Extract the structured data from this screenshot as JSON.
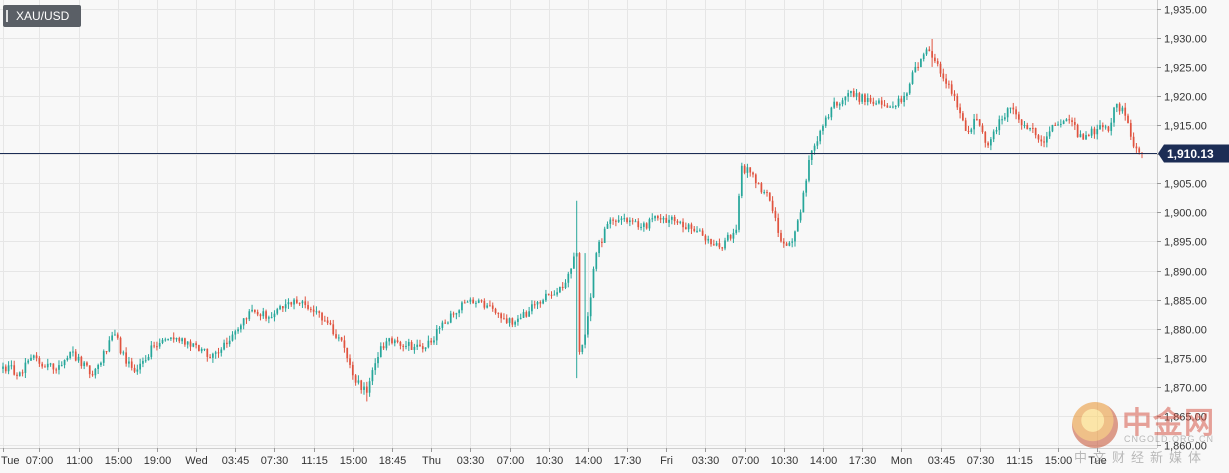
{
  "ticker": "XAU/USD",
  "colors": {
    "up": "#26a69a",
    "down": "#e0533f",
    "wick": "#444444",
    "price_line": "#1c2d55",
    "grid": "#e6e6e6"
  },
  "watermark": {
    "logo_text": "中金网",
    "url": "CNGOLD.ORG.CN",
    "subtitle": "中文财经新媒体"
  },
  "chart_data": {
    "type": "candlestick",
    "symbol": "XAU/USD",
    "ylim": [
      1859.5,
      1936.5
    ],
    "y_ticks": [
      "1,935.00",
      "1,930.00",
      "1,925.00",
      "1,920.00",
      "1,915.00",
      "1,910.00",
      "1,905.00",
      "1,900.00",
      "1,895.00",
      "1,890.00",
      "1,885.00",
      "1,880.00",
      "1,875.00",
      "1,870.00",
      "1,865.00",
      "1,860.00"
    ],
    "y_tick_values": [
      1935,
      1930,
      1925,
      1920,
      1915,
      1910,
      1905,
      1900,
      1895,
      1890,
      1885,
      1880,
      1875,
      1870,
      1865,
      1860
    ],
    "x_tick_labels": [
      "Tue",
      "07:00",
      "11:00",
      "15:00",
      "19:00",
      "Wed",
      "03:45",
      "07:30",
      "11:15",
      "15:00",
      "18:45",
      "Thu",
      "03:30",
      "07:00",
      "10:30",
      "14:00",
      "17:30",
      "Fri",
      "03:30",
      "07:00",
      "10:30",
      "14:00",
      "17:30",
      "Mon",
      "03:45",
      "07:30",
      "11:15",
      "15:00",
      "Tue"
    ],
    "x_tick_index": [
      0,
      13,
      27,
      41,
      55,
      69,
      83,
      97,
      111,
      125,
      139,
      153,
      167,
      181,
      195,
      209,
      223,
      237,
      251,
      265,
      279,
      293,
      307,
      321,
      335,
      349,
      363,
      377,
      391
    ],
    "current_price": 1910.13,
    "current_price_label": "1,910.13",
    "anchors": [
      [
        0,
        1873.5
      ],
      [
        6,
        1872.5
      ],
      [
        10,
        1875
      ],
      [
        18,
        1873
      ],
      [
        24,
        1876
      ],
      [
        32,
        1872
      ],
      [
        40,
        1879
      ],
      [
        44,
        1874
      ],
      [
        48,
        1873
      ],
      [
        54,
        1877
      ],
      [
        60,
        1878.5
      ],
      [
        68,
        1877.5
      ],
      [
        74,
        1875
      ],
      [
        82,
        1879
      ],
      [
        88,
        1883
      ],
      [
        96,
        1882
      ],
      [
        104,
        1885
      ],
      [
        112,
        1883
      ],
      [
        116,
        1881
      ],
      [
        121,
        1878
      ],
      [
        125,
        1872
      ],
      [
        130,
        1869
      ],
      [
        135,
        1877
      ],
      [
        140,
        1878
      ],
      [
        150,
        1876.5
      ],
      [
        158,
        1881
      ],
      [
        165,
        1884.5
      ],
      [
        173,
        1884
      ],
      [
        180,
        1881
      ],
      [
        188,
        1883
      ],
      [
        194,
        1886
      ],
      [
        200,
        1887
      ],
      [
        205,
        1893
      ],
      [
        206,
        1876
      ],
      [
        208,
        1879
      ],
      [
        212,
        1893
      ],
      [
        216,
        1898
      ],
      [
        222,
        1899
      ],
      [
        228,
        1897.5
      ],
      [
        234,
        1899
      ],
      [
        240,
        1898.5
      ],
      [
        250,
        1896
      ],
      [
        256,
        1894
      ],
      [
        262,
        1897
      ],
      [
        264,
        1908
      ],
      [
        270,
        1905
      ],
      [
        274,
        1902
      ],
      [
        278,
        1895
      ],
      [
        282,
        1895
      ],
      [
        285,
        1900
      ],
      [
        288,
        1909
      ],
      [
        292,
        1914
      ],
      [
        296,
        1918
      ],
      [
        302,
        1920.5
      ],
      [
        310,
        1919
      ],
      [
        316,
        1918
      ],
      [
        322,
        1920
      ],
      [
        326,
        1925
      ],
      [
        330,
        1928
      ],
      [
        333,
        1926
      ],
      [
        336,
        1923
      ],
      [
        340,
        1920
      ],
      [
        344,
        1914
      ],
      [
        348,
        1916
      ],
      [
        352,
        1911.5
      ],
      [
        356,
        1916
      ],
      [
        360,
        1918
      ],
      [
        364,
        1915
      ],
      [
        368,
        1914.5
      ],
      [
        372,
        1912
      ],
      [
        376,
        1915
      ],
      [
        380,
        1916
      ],
      [
        386,
        1912.5
      ],
      [
        392,
        1915
      ],
      [
        395,
        1914
      ],
      [
        397,
        1918
      ],
      [
        400,
        1918
      ],
      [
        403,
        1913
      ],
      [
        405,
        1911
      ],
      [
        407,
        1910.13
      ]
    ],
    "notable_wicks": [
      {
        "index": 205,
        "high": 1902,
        "low": 1871.5
      },
      {
        "index": 208,
        "high": 1893,
        "low": 1880
      },
      {
        "index": 332,
        "high": 1929.8,
        "low": 1925
      },
      {
        "index": 130,
        "high": 1870,
        "low": 1867.5
      }
    ]
  }
}
